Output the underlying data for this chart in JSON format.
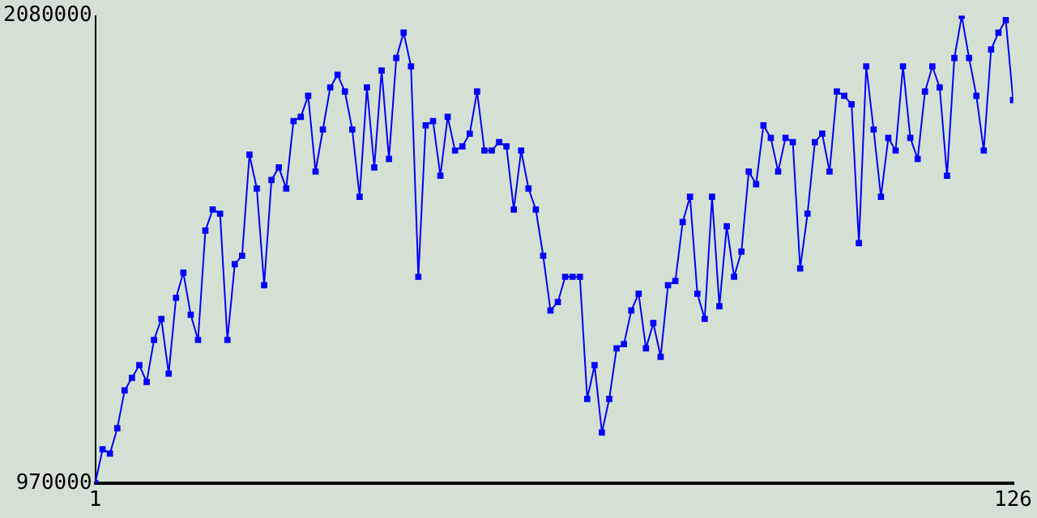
{
  "chart_data": {
    "type": "line",
    "x": [
      1,
      2,
      3,
      4,
      5,
      6,
      7,
      8,
      9,
      10,
      11,
      12,
      13,
      14,
      15,
      16,
      17,
      18,
      19,
      20,
      21,
      22,
      23,
      24,
      25,
      26,
      27,
      28,
      29,
      30,
      31,
      32,
      33,
      34,
      35,
      36,
      37,
      38,
      39,
      40,
      41,
      42,
      43,
      44,
      45,
      46,
      47,
      48,
      49,
      50,
      51,
      52,
      53,
      54,
      55,
      56,
      57,
      58,
      59,
      60,
      61,
      62,
      63,
      64,
      65,
      66,
      67,
      68,
      69,
      70,
      71,
      72,
      73,
      74,
      75,
      76,
      77,
      78,
      79,
      80,
      81,
      82,
      83,
      84,
      85,
      86,
      87,
      88,
      89,
      90,
      91,
      92,
      93,
      94,
      95,
      96,
      97,
      98,
      99,
      100,
      101,
      102,
      103,
      104,
      105,
      106,
      107,
      108,
      109,
      110,
      111,
      112,
      113,
      114,
      115,
      116,
      117,
      118,
      119,
      120,
      121,
      122,
      123,
      124,
      125,
      126
    ],
    "series": [
      {
        "color": "#0000ff",
        "values": [
          970000,
          1050000,
          1040000,
          1100000,
          1190000,
          1220000,
          1250000,
          1210000,
          1310000,
          1360000,
          1230000,
          1410000,
          1470000,
          1370000,
          1310000,
          1570000,
          1620000,
          1610000,
          1310000,
          1490000,
          1510000,
          1750000,
          1670000,
          1440000,
          1690000,
          1720000,
          1670000,
          1830000,
          1840000,
          1890000,
          1710000,
          1810000,
          1910000,
          1940000,
          1900000,
          1810000,
          1650000,
          1910000,
          1720000,
          1950000,
          1740000,
          1980000,
          2040000,
          1960000,
          1460000,
          1820000,
          1830000,
          1700000,
          1840000,
          1760000,
          1770000,
          1800000,
          1900000,
          1760000,
          1760000,
          1780000,
          1770000,
          1620000,
          1760000,
          1670000,
          1620000,
          1510000,
          1380000,
          1400000,
          1460000,
          1460000,
          1460000,
          1170000,
          1250000,
          1090000,
          1170000,
          1290000,
          1300000,
          1380000,
          1420000,
          1290000,
          1350000,
          1270000,
          1440000,
          1450000,
          1590000,
          1650000,
          1420000,
          1360000,
          1650000,
          1390000,
          1580000,
          1460000,
          1520000,
          1710000,
          1680000,
          1820000,
          1790000,
          1710000,
          1790000,
          1780000,
          1480000,
          1610000,
          1780000,
          1800000,
          1710000,
          1900000,
          1890000,
          1870000,
          1540000,
          1960000,
          1810000,
          1650000,
          1790000,
          1760000,
          1960000,
          1790000,
          1740000,
          1900000,
          1960000,
          1910000,
          1700000,
          1980000,
          2080000,
          1980000,
          1890000,
          1760000,
          2000000,
          2040000,
          2070000,
          1880000
        ]
      }
    ],
    "xlim": [
      1,
      126
    ],
    "xticks": [
      1,
      126
    ],
    "ylim": [
      970000,
      2080000
    ],
    "yticks": [
      970000,
      2080000
    ],
    "grid": false,
    "legend": false,
    "marker": "square",
    "line_style": "solid"
  }
}
